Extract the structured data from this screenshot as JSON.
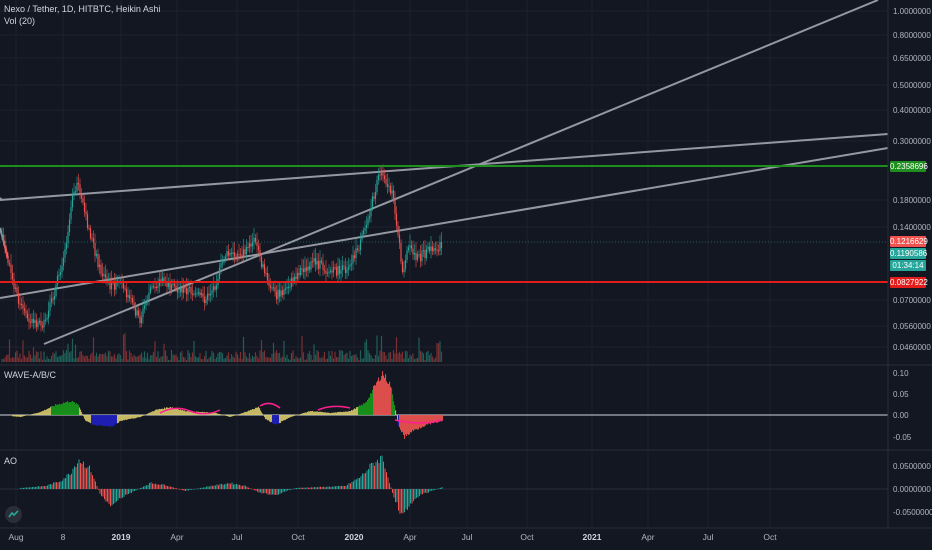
{
  "header": {
    "title": "Nexo / Tether, 1D, HITBTC, Heikin Ashi",
    "volume_label": "Vol (20)"
  },
  "price_axis": {
    "ticks": [
      "1.0000000",
      "0.8000000",
      "0.6500000",
      "0.5000000",
      "0.4000000",
      "0.3000000",
      "0.1800000",
      "0.1400000",
      "0.0700000",
      "0.0560000",
      "0.0460000"
    ],
    "scale": "log",
    "badges": {
      "resistance": "0.2358696",
      "last_price": "0.1216629",
      "current": "0.1190586",
      "countdown": "01:34:14",
      "support": "0.0827922"
    }
  },
  "wave_panel": {
    "label": "WAVE-A/B/C",
    "ticks": [
      "0.10",
      "0.05",
      "0.00",
      "-0.05"
    ]
  },
  "ao_panel": {
    "label": "AO",
    "ticks": [
      "0.0500000",
      "0.0000000",
      "-0.0500000"
    ]
  },
  "time_axis": {
    "labels": [
      {
        "text": "Aug",
        "bold": false
      },
      {
        "text": "8",
        "bold": false
      },
      {
        "text": "2019",
        "bold": true
      },
      {
        "text": "Apr",
        "bold": false
      },
      {
        "text": "Jul",
        "bold": false
      },
      {
        "text": "Oct",
        "bold": false
      },
      {
        "text": "2020",
        "bold": true
      },
      {
        "text": "Apr",
        "bold": false
      },
      {
        "text": "Jul",
        "bold": false
      },
      {
        "text": "Oct",
        "bold": false
      },
      {
        "text": "2021",
        "bold": true
      },
      {
        "text": "Apr",
        "bold": false
      },
      {
        "text": "Jul",
        "bold": false
      },
      {
        "text": "Oct",
        "bold": false
      }
    ]
  },
  "colors": {
    "background": "#131722",
    "up": "#26a69a",
    "down": "#ef5350",
    "resistance_line": "#1e8e1e",
    "support_line": "#e21b1b",
    "trend_line": "#9598a1",
    "wave_a": "#d6c96a",
    "wave_b": "#1a9a1a",
    "wave_c": "#2020c0",
    "wave_m": "#ff1f8f"
  }
}
